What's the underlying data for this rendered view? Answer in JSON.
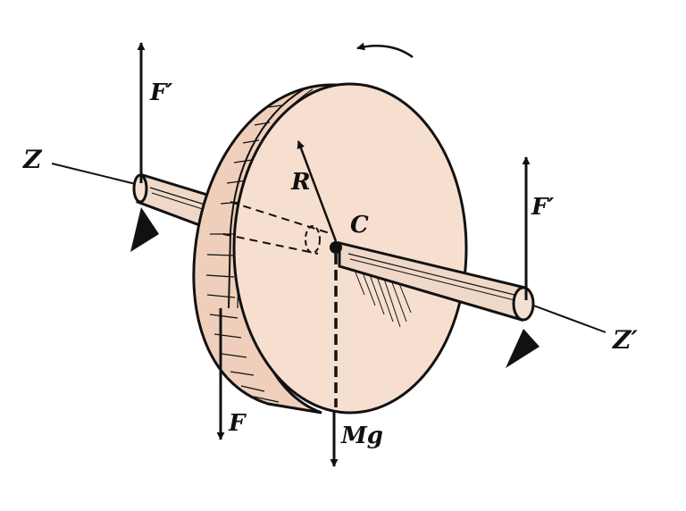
{
  "labels": {
    "axis_left": "Z",
    "axis_right": "Z′",
    "force_top_left": "F′",
    "force_top_right": "F′",
    "force_bottom": "F",
    "weight": "Mg",
    "radius": "R",
    "center": "C"
  },
  "colors": {
    "disk_face": "#f7dfcf",
    "disk_rim": "#efcfbb",
    "shaft": "#f0d8c8",
    "ink": "#111111",
    "background": "#ffffff"
  },
  "icons": {
    "rotation": "curved-arrow-icon",
    "support": "triangle-support-icon"
  }
}
